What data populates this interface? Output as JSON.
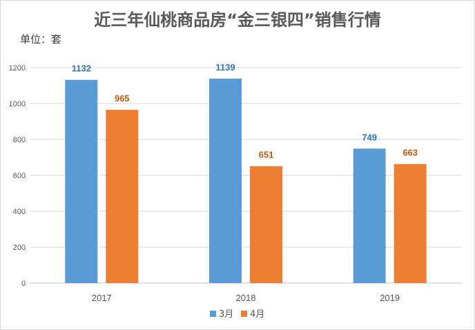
{
  "chart_data": {
    "type": "bar",
    "title": "近三年仙桃商品房“金三银四”销售行情",
    "unit_label": "单位：套",
    "categories": [
      "2017",
      "2018",
      "2019"
    ],
    "series": [
      {
        "name": "3月",
        "values": [
          1132,
          1139,
          749
        ],
        "color": "#5b9bd5",
        "label_color": "#2e75b6"
      },
      {
        "name": "4月",
        "values": [
          965,
          651,
          663
        ],
        "color": "#ed7d31",
        "label_color": "#c55a11"
      }
    ],
    "ylim": [
      0,
      1200
    ],
    "yticks": [
      0,
      200,
      400,
      600,
      800,
      1000,
      1200
    ],
    "grid": true,
    "legend": "bottom"
  }
}
